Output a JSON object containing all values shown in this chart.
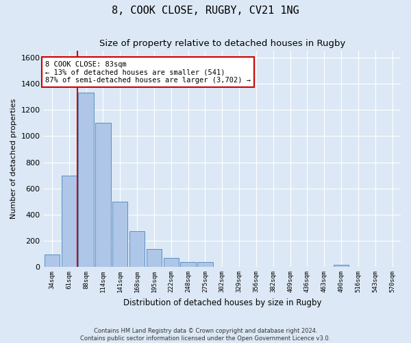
{
  "title": "8, COOK CLOSE, RUGBY, CV21 1NG",
  "subtitle": "Size of property relative to detached houses in Rugby",
  "xlabel": "Distribution of detached houses by size in Rugby",
  "ylabel": "Number of detached properties",
  "footnote": "Contains HM Land Registry data © Crown copyright and database right 2024.\nContains public sector information licensed under the Open Government Licence v3.0.",
  "bin_labels": [
    "34sqm",
    "61sqm",
    "88sqm",
    "114sqm",
    "141sqm",
    "168sqm",
    "195sqm",
    "222sqm",
    "248sqm",
    "275sqm",
    "302sqm",
    "329sqm",
    "356sqm",
    "382sqm",
    "409sqm",
    "436sqm",
    "463sqm",
    "490sqm",
    "516sqm",
    "543sqm",
    "570sqm"
  ],
  "bar_values": [
    95,
    700,
    1330,
    1100,
    500,
    275,
    135,
    70,
    35,
    35,
    0,
    0,
    0,
    0,
    0,
    0,
    0,
    15,
    0,
    0,
    0
  ],
  "bar_color": "#aec6e8",
  "bar_edge_color": "#5a8fc2",
  "property_bin_index": 2,
  "annotation_text": "8 COOK CLOSE: 83sqm\n← 13% of detached houses are smaller (541)\n87% of semi-detached houses are larger (3,702) →",
  "annotation_box_color": "#ffffff",
  "annotation_box_edge_color": "#cc0000",
  "vline_color": "#cc0000",
  "ylim": [
    0,
    1650
  ],
  "background_color": "#dce8f5",
  "plot_background_color": "#dce8f5",
  "grid_color": "#ffffff",
  "title_fontsize": 11,
  "subtitle_fontsize": 9.5
}
